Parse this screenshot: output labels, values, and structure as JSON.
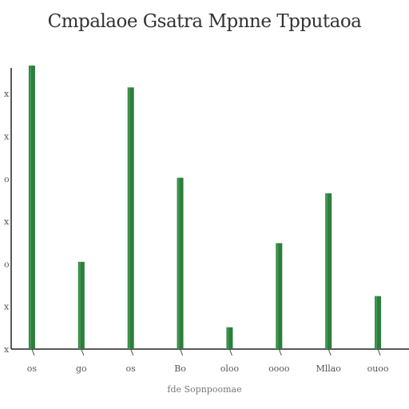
{
  "chart_data": {
    "type": "bar",
    "title": "Cmpalaoe Gsatra Mpnne Tpputaoa",
    "xlabel": "fde Sopnpoomae",
    "ylabel": "",
    "categories": [
      "os",
      "go",
      "os",
      "Bo",
      "oloo",
      "oooo",
      "Mllao",
      "ouoo"
    ],
    "values": [
      91,
      28,
      84,
      55,
      7,
      34,
      50,
      17
    ],
    "ylim": [
      0,
      100
    ],
    "y_tick_labels": [
      "x",
      "x",
      "o",
      "x",
      "o",
      "x",
      "x"
    ],
    "grid": false,
    "bar_color": "#2e7d3e",
    "bar_highlight": "#4caf60",
    "axis_color": "#222222"
  }
}
